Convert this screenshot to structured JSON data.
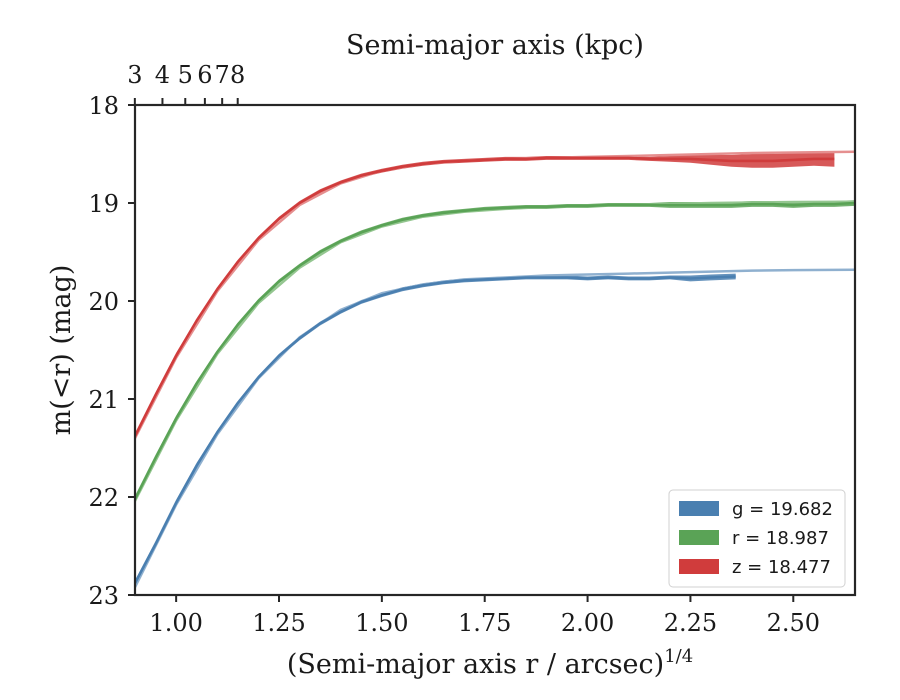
{
  "chart_data": {
    "type": "line",
    "ylabel": "m(<r) (mag)",
    "xlabel": "(Semi-major axis r / arcsec)",
    "xlabel_exponent": "1/4",
    "x2label": "Semi-major axis (kpc)",
    "xlim": [
      0.9,
      2.65
    ],
    "ylim": [
      23,
      18
    ],
    "y_inverted": true,
    "grid": false,
    "legend_placement": "lower-right",
    "x_ticks": [
      "1.00",
      "1.25",
      "1.50",
      "1.75",
      "2.00",
      "2.25",
      "2.50"
    ],
    "x_tick_values": [
      1.0,
      1.25,
      1.5,
      1.75,
      2.0,
      2.25,
      2.5
    ],
    "y_ticks": [
      "18",
      "19",
      "20",
      "21",
      "22",
      "23"
    ],
    "y_tick_values": [
      18,
      19,
      20,
      21,
      22,
      23
    ],
    "x2_ticks": [
      "3",
      "4",
      "5",
      "6",
      "7",
      "8"
    ],
    "x2_tick_values_kpc": [
      3,
      4,
      5,
      6,
      7,
      8
    ],
    "kpc_per_arcsec": 4.58,
    "series": [
      {
        "name": "g = 19.682",
        "band": "g",
        "mag": "19.682",
        "color": "#4a7fb0",
        "fit_color": "#8fb0cf",
        "x": [
          0.9,
          0.95,
          1.0,
          1.05,
          1.1,
          1.15,
          1.2,
          1.25,
          1.3,
          1.35,
          1.4,
          1.45,
          1.5,
          1.55,
          1.6,
          1.65,
          1.7,
          1.75,
          1.8,
          1.85,
          1.9,
          1.95,
          2.0,
          2.05,
          2.1,
          2.15,
          2.2,
          2.25,
          2.3,
          2.36
        ],
        "y": [
          22.88,
          22.48,
          22.06,
          21.68,
          21.34,
          21.04,
          20.78,
          20.56,
          20.38,
          20.23,
          20.11,
          20.01,
          19.94,
          19.88,
          19.84,
          19.81,
          19.79,
          19.78,
          19.77,
          19.76,
          19.76,
          19.76,
          19.77,
          19.76,
          19.77,
          19.77,
          19.76,
          19.77,
          19.76,
          19.75
        ],
        "width": [
          0.03,
          0.03,
          0.03,
          0.03,
          0.02,
          0.02,
          0.02,
          0.02,
          0.02,
          0.02,
          0.02,
          0.02,
          0.02,
          0.02,
          0.02,
          0.02,
          0.02,
          0.02,
          0.02,
          0.02,
          0.02,
          0.02,
          0.02,
          0.02,
          0.02,
          0.02,
          0.02,
          0.03,
          0.03,
          0.03
        ],
        "fit_x": [
          0.9,
          1.0,
          1.1,
          1.2,
          1.3,
          1.4,
          1.5,
          1.6,
          1.7,
          1.8,
          1.9,
          2.0,
          2.1,
          2.2,
          2.3,
          2.4,
          2.5,
          2.65
        ],
        "fit_y": [
          22.92,
          22.08,
          21.36,
          20.79,
          20.37,
          20.09,
          19.92,
          19.83,
          19.78,
          19.76,
          19.74,
          19.73,
          19.72,
          19.71,
          19.7,
          19.69,
          19.685,
          19.682
        ]
      },
      {
        "name": "r = 18.987",
        "band": "r",
        "mag": "18.987",
        "color": "#5aa356",
        "fit_color": "#94c690",
        "x": [
          0.9,
          0.95,
          1.0,
          1.05,
          1.1,
          1.15,
          1.2,
          1.25,
          1.3,
          1.35,
          1.4,
          1.45,
          1.5,
          1.55,
          1.6,
          1.65,
          1.7,
          1.75,
          1.8,
          1.85,
          1.9,
          1.95,
          2.0,
          2.05,
          2.1,
          2.15,
          2.2,
          2.25,
          2.3,
          2.35,
          2.4,
          2.45,
          2.5,
          2.55,
          2.6,
          2.65
        ],
        "y": [
          22.02,
          21.6,
          21.2,
          20.84,
          20.52,
          20.24,
          20.0,
          19.8,
          19.64,
          19.5,
          19.39,
          19.3,
          19.23,
          19.17,
          19.13,
          19.1,
          19.08,
          19.06,
          19.05,
          19.04,
          19.04,
          19.03,
          19.03,
          19.02,
          19.02,
          19.02,
          19.02,
          19.02,
          19.02,
          19.02,
          19.01,
          19.01,
          19.02,
          19.01,
          19.01,
          19.0
        ],
        "width": [
          0.03,
          0.03,
          0.03,
          0.02,
          0.02,
          0.02,
          0.02,
          0.02,
          0.02,
          0.02,
          0.02,
          0.02,
          0.02,
          0.02,
          0.02,
          0.02,
          0.02,
          0.02,
          0.02,
          0.02,
          0.02,
          0.02,
          0.02,
          0.02,
          0.02,
          0.02,
          0.03,
          0.03,
          0.03,
          0.03,
          0.03,
          0.03,
          0.03,
          0.03,
          0.03,
          0.03
        ],
        "fit_x": [
          0.9,
          1.0,
          1.1,
          1.2,
          1.3,
          1.4,
          1.5,
          1.6,
          1.7,
          1.8,
          1.9,
          2.0,
          2.1,
          2.2,
          2.3,
          2.4,
          2.5,
          2.65
        ],
        "fit_y": [
          22.04,
          21.22,
          20.54,
          20.02,
          19.66,
          19.4,
          19.24,
          19.14,
          19.09,
          19.06,
          19.04,
          19.03,
          19.02,
          19.01,
          19.0,
          18.995,
          18.99,
          18.987
        ]
      },
      {
        "name": "z = 18.477",
        "band": "z",
        "mag": "18.477",
        "color": "#d03c3c",
        "fit_color": "#e58f8f",
        "x": [
          0.9,
          0.95,
          1.0,
          1.05,
          1.1,
          1.15,
          1.2,
          1.25,
          1.3,
          1.35,
          1.4,
          1.45,
          1.5,
          1.55,
          1.6,
          1.65,
          1.7,
          1.75,
          1.8,
          1.85,
          1.9,
          1.95,
          2.0,
          2.05,
          2.1,
          2.15,
          2.2,
          2.25,
          2.3,
          2.35,
          2.4,
          2.45,
          2.5,
          2.55,
          2.6
        ],
        "y": [
          21.38,
          20.96,
          20.56,
          20.2,
          19.88,
          19.6,
          19.36,
          19.16,
          19.0,
          18.88,
          18.79,
          18.72,
          18.67,
          18.63,
          18.6,
          18.58,
          18.57,
          18.56,
          18.55,
          18.55,
          18.54,
          18.54,
          18.54,
          18.54,
          18.54,
          18.55,
          18.55,
          18.55,
          18.56,
          18.57,
          18.57,
          18.57,
          18.56,
          18.55,
          18.55
        ],
        "width": [
          0.03,
          0.03,
          0.03,
          0.02,
          0.02,
          0.02,
          0.02,
          0.02,
          0.02,
          0.02,
          0.02,
          0.02,
          0.02,
          0.02,
          0.02,
          0.02,
          0.02,
          0.02,
          0.02,
          0.02,
          0.02,
          0.02,
          0.02,
          0.02,
          0.02,
          0.02,
          0.03,
          0.04,
          0.05,
          0.06,
          0.07,
          0.07,
          0.07,
          0.07,
          0.08
        ],
        "fit_x": [
          0.9,
          1.0,
          1.1,
          1.2,
          1.3,
          1.4,
          1.5,
          1.6,
          1.7,
          1.8,
          1.9,
          2.0,
          2.1,
          2.2,
          2.3,
          2.4,
          2.5,
          2.65
        ],
        "fit_y": [
          21.4,
          20.58,
          19.9,
          19.38,
          19.02,
          18.8,
          18.67,
          18.6,
          18.57,
          18.55,
          18.54,
          18.53,
          18.52,
          18.51,
          18.5,
          18.49,
          18.485,
          18.477
        ]
      }
    ]
  }
}
